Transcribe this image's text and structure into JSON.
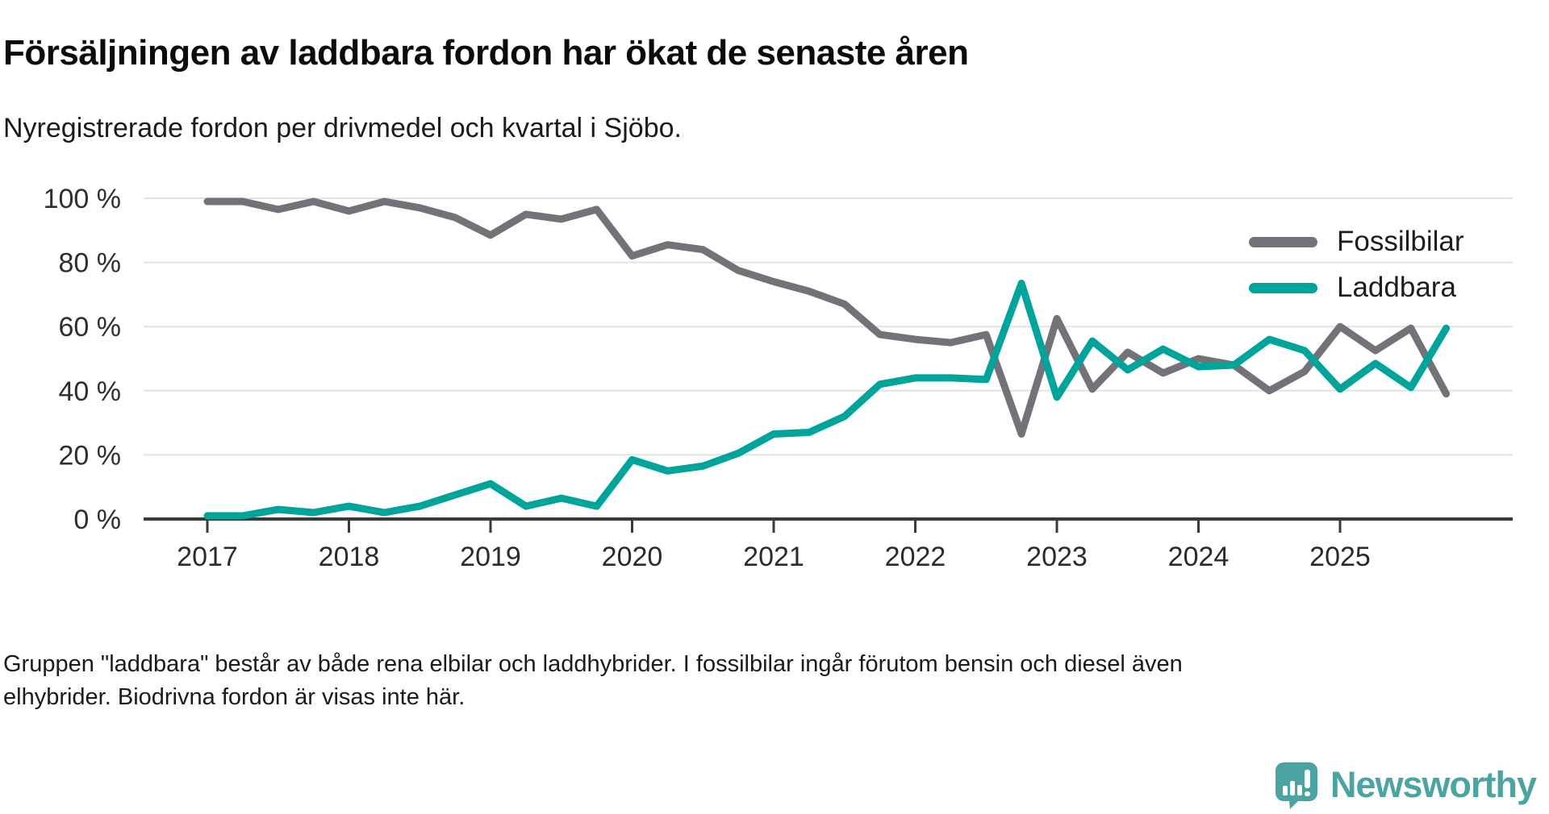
{
  "header": {
    "title": "Försäljningen av laddbara fordon har ökat de senaste åren",
    "subtitle": "Nyregistrerade fordon per drivmedel och kvartal i Sjöbo."
  },
  "chart_data": {
    "type": "line",
    "x": [
      "2017 Q1",
      "2017 Q2",
      "2017 Q3",
      "2017 Q4",
      "2018 Q1",
      "2018 Q2",
      "2018 Q3",
      "2018 Q4",
      "2019 Q1",
      "2019 Q2",
      "2019 Q3",
      "2019 Q4",
      "2020 Q1",
      "2020 Q2",
      "2020 Q3",
      "2020 Q4",
      "2021 Q1",
      "2021 Q2",
      "2021 Q3",
      "2021 Q4",
      "2022 Q1",
      "2022 Q2",
      "2022 Q3",
      "2022 Q4",
      "2023 Q1",
      "2023 Q2",
      "2023 Q3",
      "2023 Q4",
      "2024 Q1",
      "2024 Q2",
      "2024 Q3",
      "2024 Q4",
      "2025 Q1",
      "2025 Q2",
      "2025 Q3",
      "2025 Q4"
    ],
    "x_tick_labels": [
      "2017",
      "2018",
      "2019",
      "2020",
      "2021",
      "2022",
      "2023",
      "2024",
      "2025"
    ],
    "y_ticks": [
      "100 %",
      "80 %",
      "60 %",
      "40 %",
      "20 %",
      "0 %"
    ],
    "y_tick_values": [
      100,
      80,
      60,
      40,
      20,
      0
    ],
    "ylim": [
      0,
      100
    ],
    "ylabel": "",
    "xlabel": "",
    "grid": true,
    "legend_position": "top-right",
    "series": [
      {
        "name": "Fossilbilar",
        "color": "#727278",
        "values": [
          99,
          99,
          96.5,
          99,
          96,
          99,
          97,
          94,
          88.5,
          95,
          93.5,
          96.5,
          82,
          85.5,
          84,
          77.5,
          74,
          71,
          67,
          57.5,
          56,
          55,
          57.5,
          26.5,
          62.5,
          40.5,
          52,
          45.5,
          50,
          48,
          40,
          46,
          60,
          52.5,
          59.5,
          39
        ]
      },
      {
        "name": "Laddbara",
        "color": "#00a49b",
        "values": [
          1,
          1,
          3,
          2,
          4,
          2,
          4,
          7.5,
          11,
          4,
          6.5,
          4,
          18.5,
          15,
          16.5,
          20.5,
          26.5,
          27,
          32,
          42,
          44,
          44,
          43.5,
          73.5,
          38,
          55.5,
          46.5,
          53,
          47.5,
          48,
          56,
          52.5,
          40.5,
          48.5,
          41,
          59.5
        ]
      }
    ]
  },
  "footer": {
    "lines": [
      "Gruppen \"laddbara\" består av både rena elbilar och laddhybrider. I fossilbilar ingår förutom bensin och diesel även",
      "elhybrider. Biodrivna fordon är visas inte här."
    ]
  },
  "brand": {
    "name": "Newsworthy",
    "color": "#4ba4a2"
  }
}
